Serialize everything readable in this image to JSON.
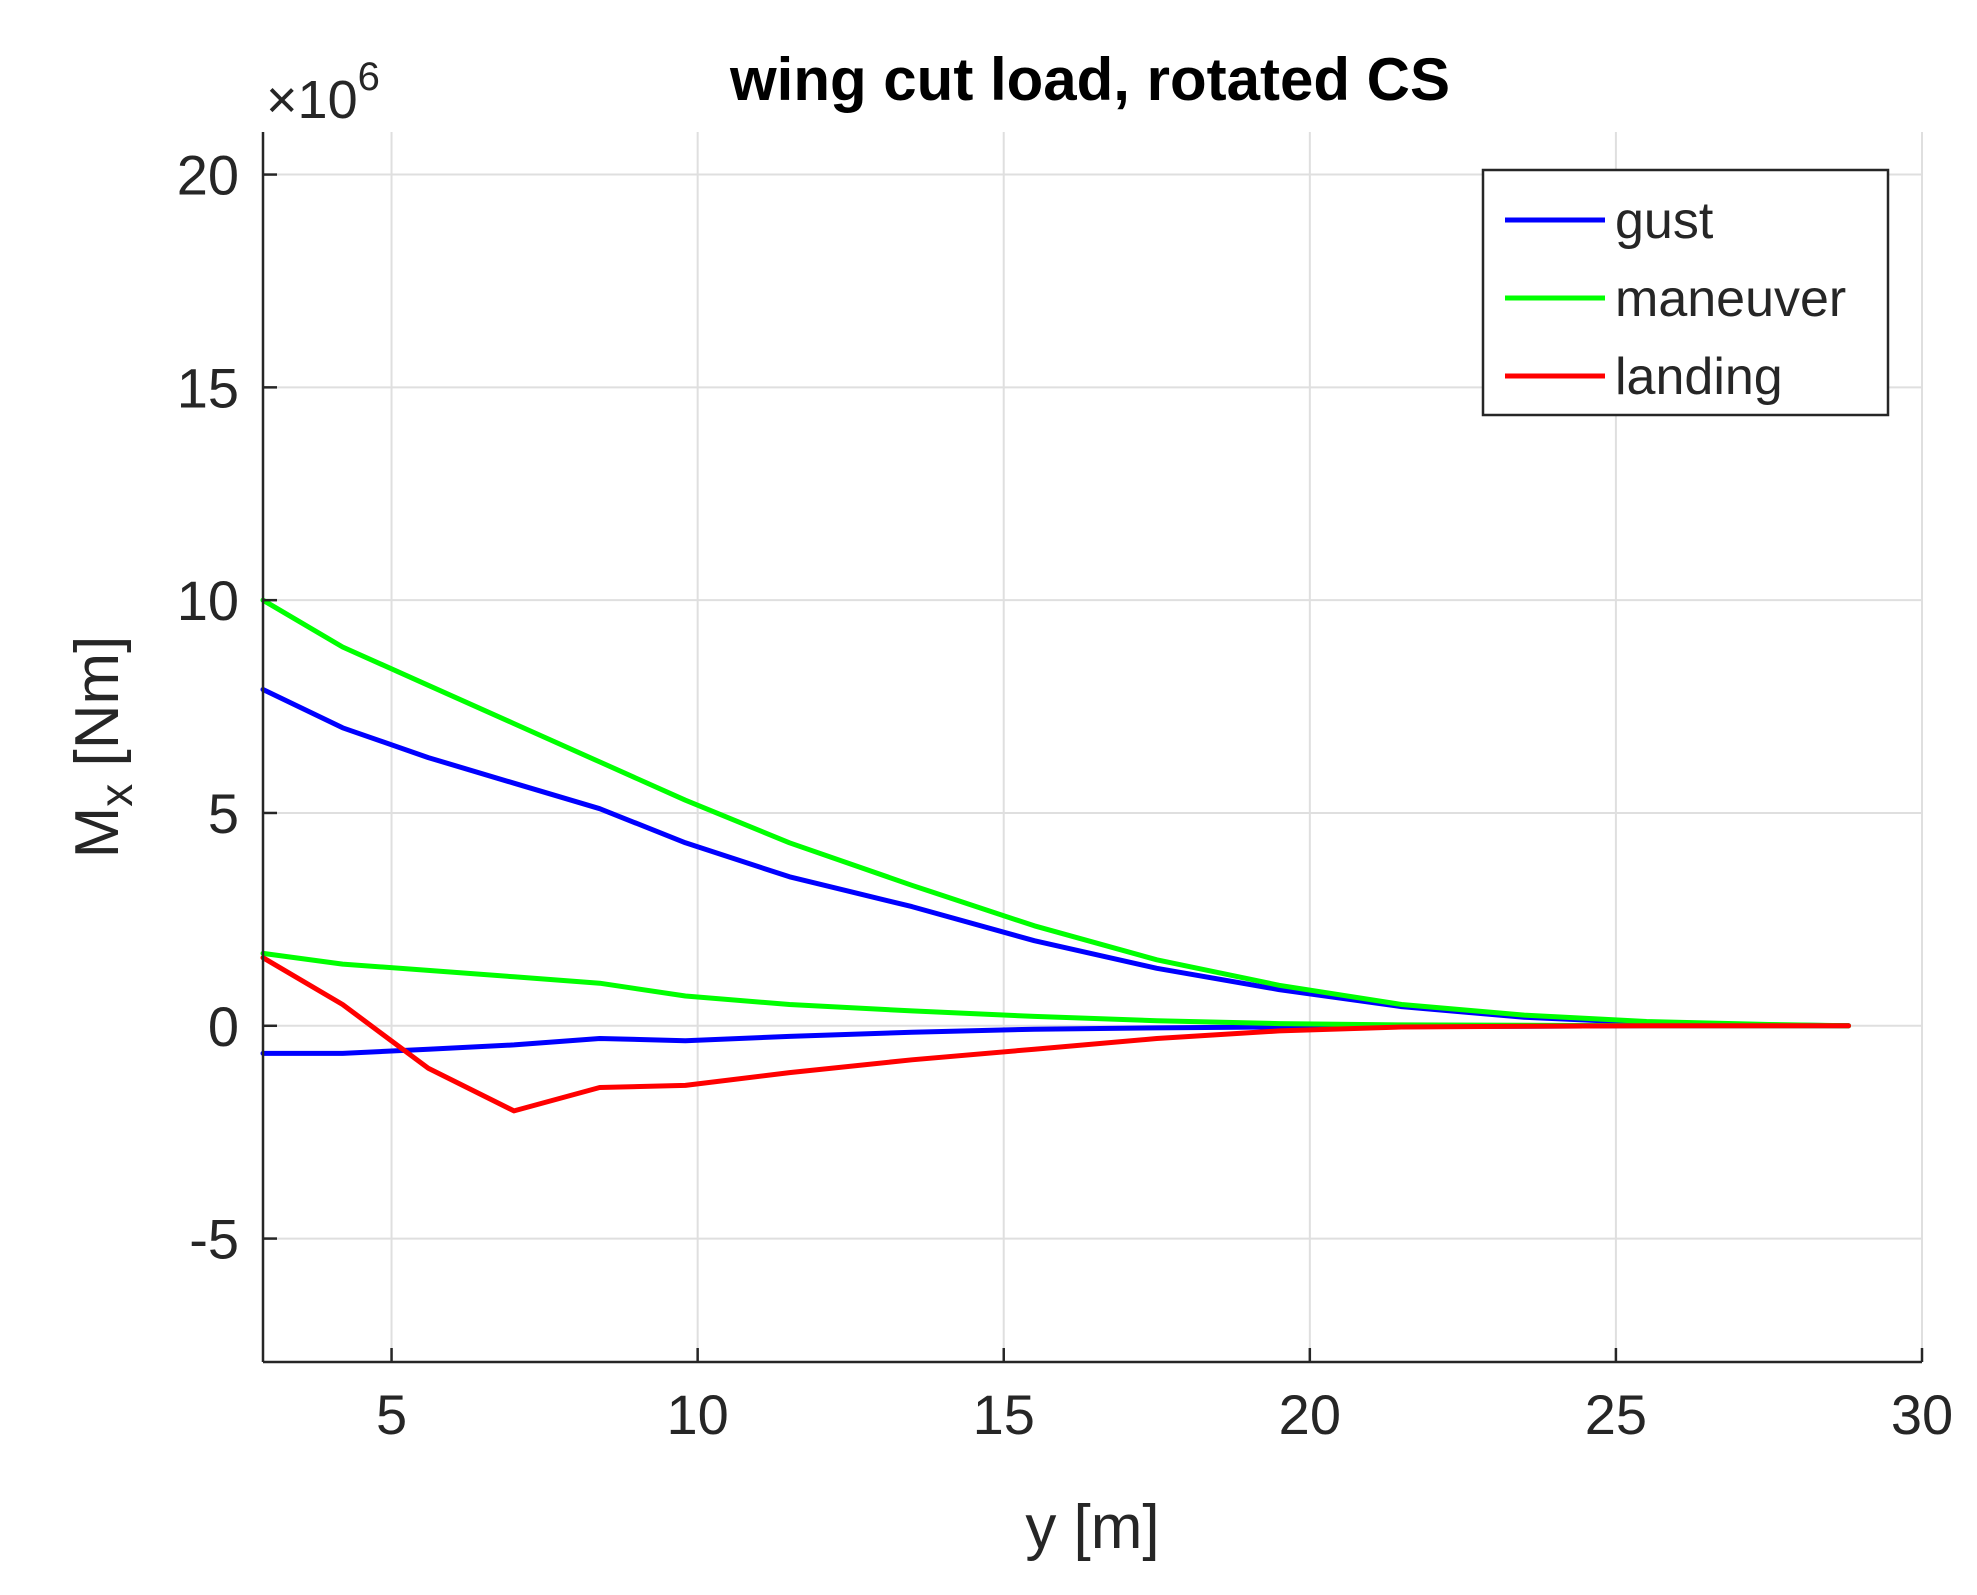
{
  "chart_data": {
    "type": "line",
    "title": "wing cut load, rotated CS",
    "xlabel": "y [m]",
    "ylabel_main": "M",
    "ylabel_sub": "x",
    "ylabel_unit": " [Nm]",
    "y_multiplier_base": "×10",
    "y_multiplier_exp": "6",
    "xlim": [
      2.9,
      30
    ],
    "ylim": [
      -7.9,
      21
    ],
    "xticks": [
      5,
      10,
      15,
      20,
      25,
      30
    ],
    "yticks": [
      -5,
      0,
      5,
      10,
      15,
      20
    ],
    "grid": true,
    "legend_position": "top-right",
    "series": [
      {
        "name": "gust",
        "color": "#0000ff",
        "x": [
          2.9,
          4.2,
          5.6,
          7.0,
          8.4,
          9.8,
          11.5,
          13.5,
          15.5,
          17.5,
          19.5,
          21.5,
          23.5,
          25.5,
          27.5,
          28.8
        ],
        "y": [
          7.9,
          7.0,
          6.3,
          5.7,
          5.1,
          4.3,
          3.5,
          2.8,
          2.0,
          1.35,
          0.85,
          0.45,
          0.2,
          0.07,
          0.02,
          0.0
        ]
      },
      {
        "name": "gust",
        "color": "#0000ff",
        "x": [
          2.9,
          4.2,
          5.6,
          7.0,
          8.4,
          9.8,
          11.5,
          13.5,
          15.5,
          17.5,
          19.5,
          21.5,
          23.5,
          25.5,
          27.5,
          28.8
        ],
        "y": [
          -0.65,
          -0.65,
          -0.55,
          -0.45,
          -0.3,
          -0.35,
          -0.25,
          -0.15,
          -0.08,
          -0.05,
          -0.03,
          -0.02,
          -0.01,
          0.0,
          0.0,
          0.0
        ]
      },
      {
        "name": "maneuver",
        "color": "#00ff00",
        "x": [
          2.9,
          4.2,
          5.6,
          7.0,
          8.4,
          9.8,
          11.5,
          13.5,
          15.5,
          17.5,
          19.5,
          21.5,
          23.5,
          25.5,
          27.5,
          28.8
        ],
        "y": [
          10.0,
          8.9,
          8.0,
          7.1,
          6.2,
          5.3,
          4.3,
          3.3,
          2.35,
          1.55,
          0.95,
          0.5,
          0.25,
          0.1,
          0.03,
          0.0
        ]
      },
      {
        "name": "maneuver",
        "color": "#00ff00",
        "x": [
          2.9,
          4.2,
          5.6,
          7.0,
          8.4,
          9.8,
          11.5,
          13.5,
          15.5,
          17.5,
          19.5,
          21.5,
          23.5,
          25.5,
          27.5,
          28.8
        ],
        "y": [
          1.7,
          1.45,
          1.3,
          1.15,
          1.0,
          0.7,
          0.5,
          0.35,
          0.22,
          0.12,
          0.05,
          0.02,
          0.01,
          0.0,
          0.0,
          0.0
        ]
      },
      {
        "name": "landing",
        "color": "#ff0000",
        "x": [
          2.9,
          4.2,
          5.6,
          7.0,
          8.4,
          9.8,
          11.5,
          13.5,
          15.5,
          17.5,
          19.5,
          21.5,
          23.5,
          25.5,
          27.5,
          28.8
        ],
        "y": [
          1.6,
          0.5,
          -1.0,
          -2.0,
          -1.45,
          -1.4,
          -1.1,
          -0.8,
          -0.55,
          -0.3,
          -0.12,
          -0.03,
          -0.01,
          0.0,
          0.0,
          0.0
        ]
      }
    ],
    "legend": [
      {
        "name": "gust",
        "color": "#0000ff"
      },
      {
        "name": "maneuver",
        "color": "#00ff00"
      },
      {
        "name": "landing",
        "color": "#ff0000"
      }
    ]
  }
}
